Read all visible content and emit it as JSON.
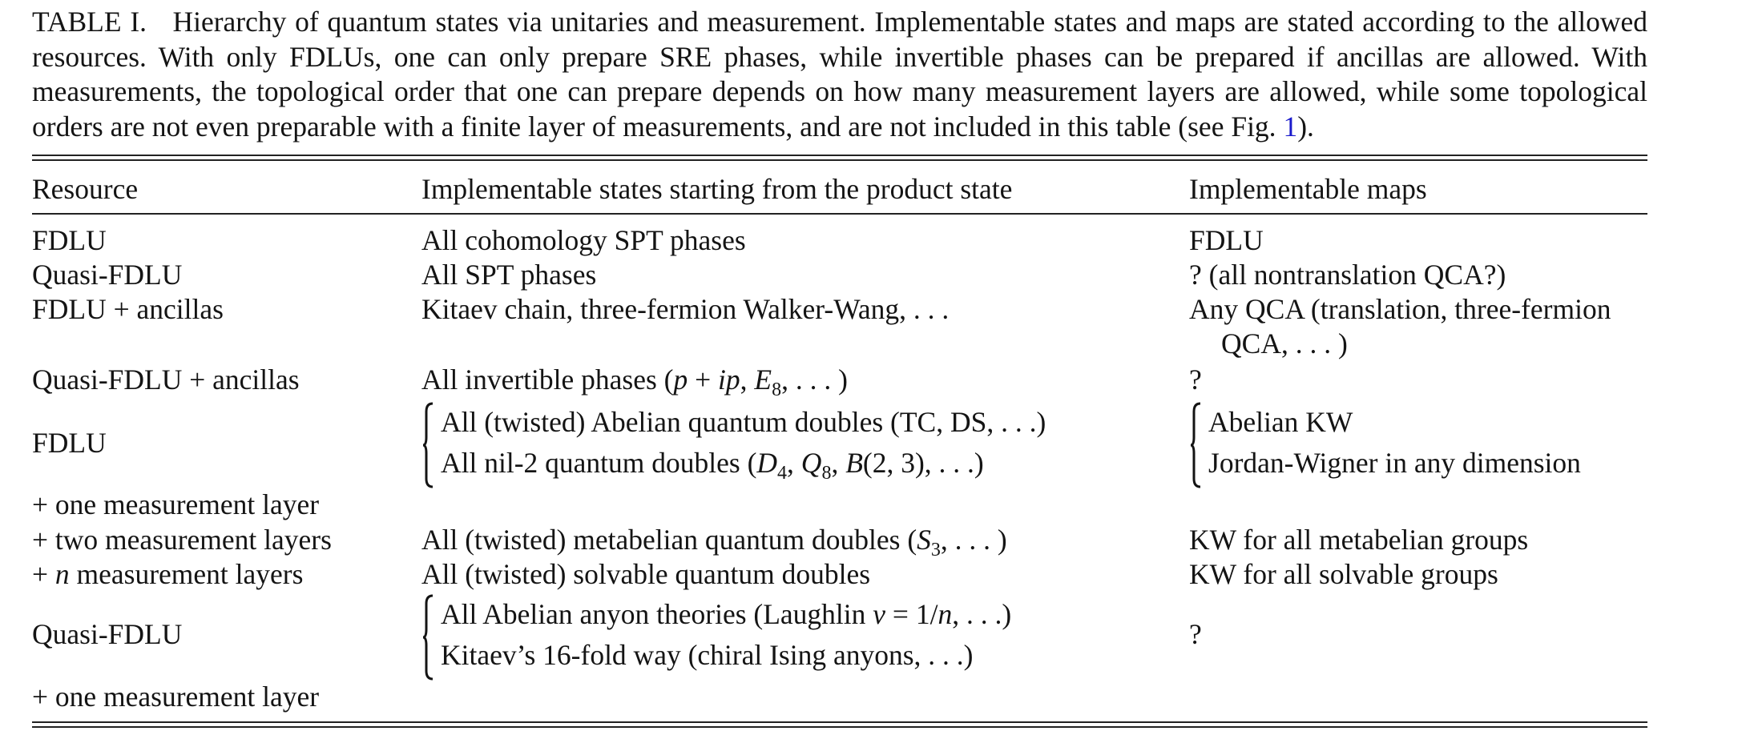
{
  "caption": {
    "label": "TABLE I.",
    "text": "Hierarchy of quantum states via unitaries and measurement. Implementable states and maps are stated according to the allowed resources. With only FDLUs, one can only prepare SRE phases, while invertible phases can be prepared if ancillas are allowed. With measurements, the topological order that one can prepare depends on how many measurement layers are allowed, while some topological orders are not even preparable with a finite layer of measurements, and are not included in this table (see Fig. ",
    "ref": "1",
    "end": ")."
  },
  "headers": {
    "resource": "Resource",
    "states": "Implementable states starting from the product state",
    "maps": "Implementable maps"
  },
  "rows": {
    "r1": {
      "resource": "FDLU",
      "states": "All cohomology SPT phases",
      "maps": "FDLU"
    },
    "r2": {
      "resource": "Quasi-FDLU",
      "states": "All SPT phases",
      "maps": "? (all nontranslation QCA?)"
    },
    "r3": {
      "resource": "FDLU + ancillas",
      "states": "Kitaev chain, three-fermion Walker-Wang, . . .",
      "maps": "Any QCA (translation, three-fermion",
      "maps_cont": "QCA, . . . )"
    },
    "r4": {
      "resource": "Quasi-FDLU + ancillas",
      "states_a": "All invertible phases (",
      "states_b": "p",
      "states_c": " + ",
      "states_d": "ip",
      "states_e": ", ",
      "states_f": "E",
      "states_g": "8",
      "states_h": ", . . . )",
      "maps": "?"
    },
    "r5": {
      "resource": "FDLU",
      "states_1": "All (twisted) Abelian quantum doubles (TC, DS, . . .)",
      "states_2a": "All nil-2 quantum doubles (",
      "states_2b": "D",
      "states_2c": "4",
      "states_2d": ", ",
      "states_2e": "Q",
      "states_2f": "8",
      "states_2g": ", ",
      "states_2h": "B",
      "states_2i": "(2, 3), . . .)",
      "maps_1": "Abelian KW",
      "maps_2": "Jordan-Wigner in any dimension",
      "resource_2": "+ one measurement layer"
    },
    "r6": {
      "resource": "+ two measurement layers",
      "states_a": "All (twisted) metabelian quantum doubles (",
      "states_b": "S",
      "states_c": "3",
      "states_d": ", . . . )",
      "maps": "KW for all metabelian groups"
    },
    "r7": {
      "resource_a": "+ ",
      "resource_b": "n",
      "resource_c": " measurement layers",
      "states": "All (twisted) solvable quantum doubles",
      "maps": "KW for all solvable groups"
    },
    "r8": {
      "resource": "Quasi-FDLU",
      "states_1a": "All Abelian anyon theories (Laughlin ",
      "states_1b": "ν",
      "states_1c": " = 1/",
      "states_1d": "n",
      "states_1e": ", . . .)",
      "states_2": "Kitaev’s 16-fold way (chiral Ising anyons, . . .)",
      "maps": "?",
      "resource_2": "+ one measurement layer"
    }
  }
}
